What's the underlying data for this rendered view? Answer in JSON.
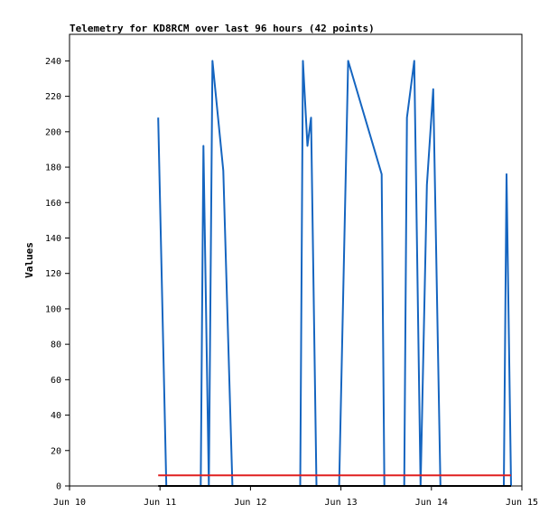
{
  "chart_data": {
    "type": "line",
    "title": "Telemetry for KD8RCM over last 96 hours (42 points)",
    "xlabel": "",
    "ylabel": "Values",
    "x_tick_labels": [
      "Jun 10",
      "Jun 11",
      "Jun 12",
      "Jun 13",
      "Jun 14",
      "Jun 15"
    ],
    "x_range": [
      0,
      5
    ],
    "x_unit": "days since Jun 10",
    "y_ticks": [
      0,
      20,
      40,
      60,
      80,
      100,
      120,
      140,
      160,
      180,
      200,
      220,
      240
    ],
    "ylim": [
      0,
      255
    ],
    "grid": false,
    "legend": "none",
    "series": [
      {
        "color": "#1565c0",
        "points": [
          [
            0.98,
            208
          ],
          [
            1.07,
            0
          ],
          [
            1.45,
            0
          ],
          [
            1.48,
            192
          ],
          [
            1.54,
            0
          ],
          [
            1.58,
            240
          ],
          [
            1.7,
            178
          ],
          [
            1.8,
            0
          ],
          [
            2.55,
            0
          ],
          [
            2.58,
            240
          ],
          [
            2.63,
            192
          ],
          [
            2.67,
            208
          ],
          [
            2.73,
            0
          ],
          [
            2.98,
            0
          ],
          [
            3.08,
            240
          ],
          [
            3.45,
            176
          ],
          [
            3.48,
            0
          ],
          [
            3.7,
            0
          ],
          [
            3.73,
            208
          ],
          [
            3.81,
            240
          ],
          [
            3.88,
            0
          ],
          [
            3.95,
            170
          ],
          [
            4.02,
            224
          ],
          [
            4.1,
            0
          ],
          [
            4.8,
            0
          ],
          [
            4.83,
            176
          ],
          [
            4.88,
            0
          ]
        ]
      },
      {
        "color": "#e02020",
        "points": [
          [
            0.98,
            6
          ],
          [
            4.88,
            6
          ]
        ]
      },
      {
        "color": "#000000",
        "points": [
          [
            0.98,
            0
          ],
          [
            4.88,
            0
          ]
        ]
      }
    ]
  }
}
